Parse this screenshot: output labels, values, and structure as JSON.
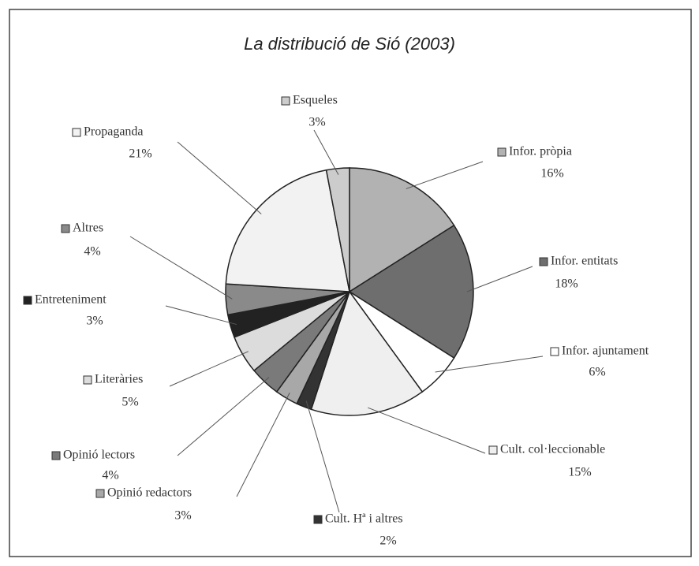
{
  "chart_data": {
    "type": "pie",
    "title": "La distribució de Sió (2003)",
    "categories": [
      "Infor. pròpia",
      "Infor. entitats",
      "Infor. ajuntament",
      "Cult. col·leccionable",
      "Cult. Hª i altres",
      "Opinió redactors",
      "Opinió lectors",
      "Literàries",
      "Entreteniment",
      "Altres",
      "Propaganda",
      "Esqueles"
    ],
    "values": [
      16,
      18,
      6,
      15,
      2,
      3,
      4,
      5,
      3,
      4,
      21,
      3
    ],
    "value_labels": [
      "16%",
      "18%",
      "6%",
      "15%",
      "2%",
      "3%",
      "4%",
      "5%",
      "3%",
      "4%",
      "21%",
      "3%"
    ],
    "colors": [
      "#b2b2b2",
      "#6e6e6e",
      "#ffffff",
      "#efefef",
      "#333333",
      "#a8a8a8",
      "#7a7a7a",
      "#dcdcdc",
      "#222222",
      "#8a8a8a",
      "#f2f2f2",
      "#cccccc"
    ]
  }
}
